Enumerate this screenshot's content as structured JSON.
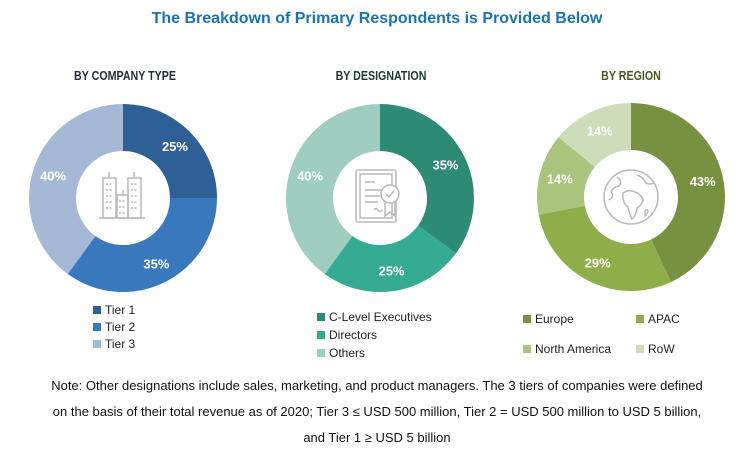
{
  "title": "The Breakdown of Primary Respondents is Provided Below",
  "chart_data": [
    {
      "type": "pie",
      "variant": "donut",
      "title": "BY COMPANY TYPE",
      "center_icon": "buildings-icon",
      "categories": [
        "Tier 1",
        "Tier 2",
        "Tier 3"
      ],
      "values": [
        25,
        35,
        40
      ],
      "labels": [
        "25%",
        "35%",
        "40%"
      ],
      "colors": [
        "#2e5f97",
        "#3a78bd",
        "#a5b9d6"
      ],
      "legend": "bottom"
    },
    {
      "type": "pie",
      "variant": "donut",
      "title": "BY DESIGNATION",
      "center_icon": "certificate-icon",
      "categories": [
        "C-Level Executives",
        "Directors",
        "Others"
      ],
      "values": [
        35,
        25,
        40
      ],
      "labels": [
        "35%",
        "25%",
        "40%"
      ],
      "colors": [
        "#2c8a75",
        "#35ab91",
        "#9fcdbf"
      ],
      "legend": "bottom"
    },
    {
      "type": "pie",
      "variant": "donut",
      "title": "BY REGION",
      "center_icon": "globe-icon",
      "categories": [
        "Europe",
        "APAC",
        "North America",
        "RoW"
      ],
      "values": [
        43,
        29,
        14,
        14
      ],
      "labels": [
        "43%",
        "29%",
        "14%",
        "14%"
      ],
      "colors": [
        "#789140",
        "#8eae4a",
        "#aac47e",
        "#cfdcb9"
      ],
      "legend": "bottom"
    }
  ],
  "note": {
    "lines": [
      "Note: Other designations include sales, marketing, and product managers. The 3 tiers of companies were defined",
      "on the basis of their total revenue as of 2020; Tier 3 ≤ USD 500 million, Tier 2 = USD 500 million to USD 5 billion,",
      "and Tier 1 ≥ USD 5 billion"
    ]
  }
}
